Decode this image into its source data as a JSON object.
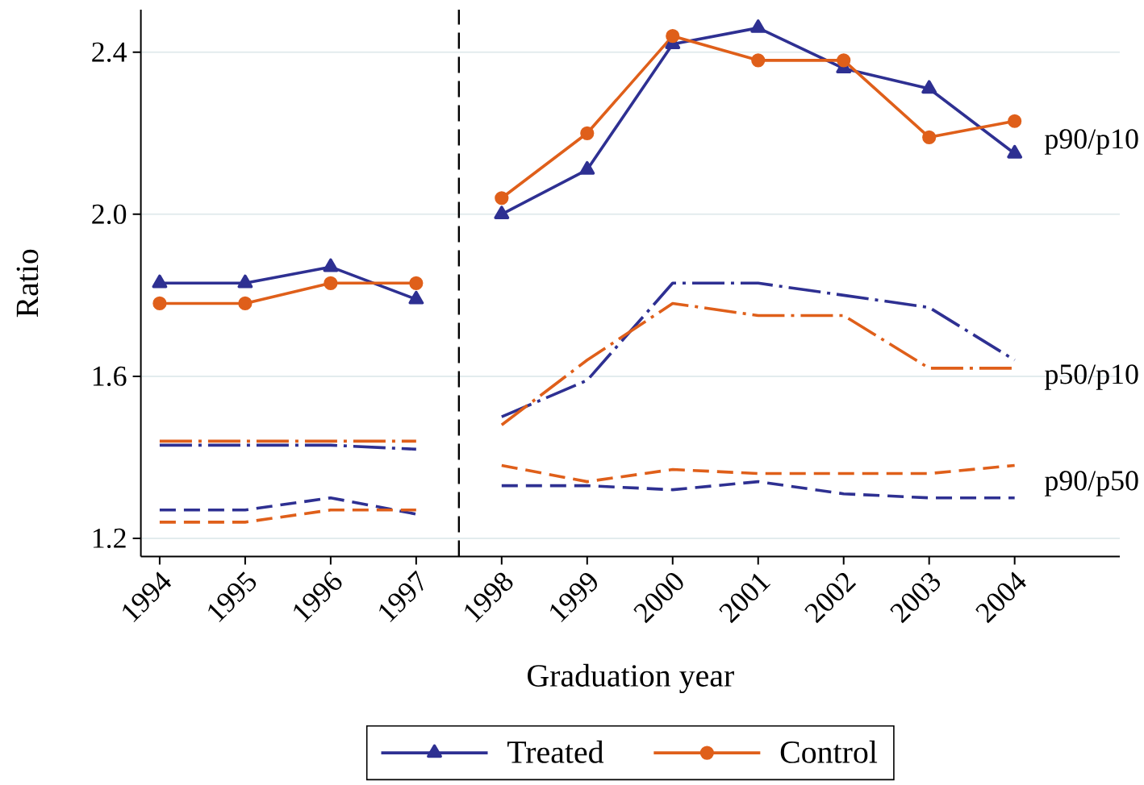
{
  "chart_data": {
    "type": "line",
    "xlabel": "Graduation year",
    "ylabel": "Ratio",
    "x": [
      1994,
      1995,
      1996,
      1997,
      1997.5,
      1998,
      1999,
      2000,
      2001,
      2002,
      2003,
      2004
    ],
    "series": [
      {
        "name": "Treated",
        "color": "#2e3092",
        "marker": "triangle",
        "line_style": "solid",
        "values": [
          1.83,
          1.83,
          1.87,
          1.79,
          null,
          2.0,
          2.11,
          2.42,
          2.46,
          2.36,
          2.31,
          2.15
        ]
      },
      {
        "name": "Control",
        "color": "#df5f1a",
        "marker": "circle",
        "line_style": "solid",
        "values": [
          1.78,
          1.78,
          1.83,
          1.83,
          null,
          2.04,
          2.2,
          2.44,
          2.38,
          2.38,
          2.19,
          2.23
        ]
      },
      {
        "color": "#2e3092",
        "line_style": "dashdot",
        "values": [
          1.43,
          1.43,
          1.43,
          1.42,
          null,
          1.5,
          1.59,
          1.83,
          1.83,
          1.8,
          1.77,
          1.64
        ]
      },
      {
        "color": "#df5f1a",
        "line_style": "dashdot",
        "values": [
          1.44,
          1.44,
          1.44,
          1.44,
          null,
          1.48,
          1.64,
          1.78,
          1.75,
          1.75,
          1.62,
          1.62
        ]
      },
      {
        "color": "#2e3092",
        "line_style": "dashed",
        "values": [
          1.27,
          1.27,
          1.3,
          1.26,
          null,
          1.33,
          1.33,
          1.32,
          1.34,
          1.31,
          1.3,
          1.3
        ]
      },
      {
        "color": "#df5f1a",
        "line_style": "dashed",
        "values": [
          1.24,
          1.24,
          1.27,
          1.27,
          null,
          1.38,
          1.34,
          1.37,
          1.36,
          1.36,
          1.36,
          1.38
        ]
      }
    ],
    "xlim": [
      1993.78,
      2005.23
    ],
    "xticks": [
      1994,
      1995,
      1996,
      1997,
      1998,
      1999,
      2000,
      2001,
      2002,
      2003,
      2004
    ],
    "ylim": [
      1.155,
      2.505
    ],
    "yticks": [
      1.2,
      1.6,
      {
        "value": 2.0,
        "label": "2.0"
      },
      2.4
    ],
    "grid": "y",
    "legend": "bottom",
    "ref_lines": [
      {
        "axis": "x",
        "value": 1997.5,
        "color": "#000000",
        "line_style": "dashed"
      }
    ],
    "annotations": [
      "p90/p10",
      "p50/p10",
      "p90/p50"
    ]
  }
}
